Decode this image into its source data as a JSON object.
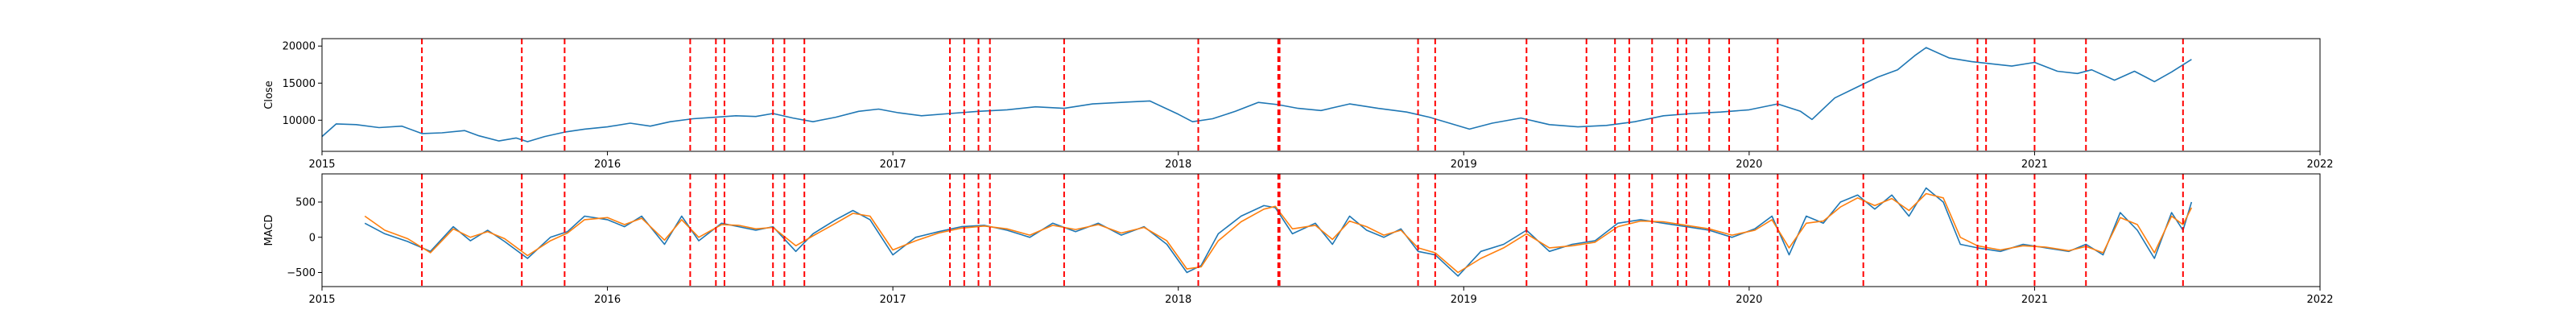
{
  "colors": {
    "close": "#1f77b4",
    "macd": "#1f77b4",
    "signal": "#ff7f0e",
    "events": "#ff0000",
    "axes": "#000000"
  },
  "chart_data": [
    {
      "type": "line",
      "ylabel": "Close",
      "xlim": [
        2015.0,
        2022.0
      ],
      "ylim": [
        5800,
        21000
      ],
      "x_ticks": [
        2015,
        2016,
        2017,
        2018,
        2019,
        2020,
        2021,
        2022
      ],
      "x_tick_labels": [
        "2015",
        "2016",
        "2017",
        "2018",
        "2019",
        "2020",
        "2021",
        "2022"
      ],
      "y_ticks": [
        10000,
        15000,
        20000
      ],
      "y_tick_labels": [
        "10000",
        "15000",
        "20000"
      ],
      "grid": false,
      "series": [
        {
          "x": [
            2015.0,
            2015.05,
            2015.12,
            2015.2,
            2015.28,
            2015.35,
            2015.42,
            2015.5,
            2015.55,
            2015.62,
            2015.68,
            2015.72,
            2015.78,
            2015.85,
            2015.92,
            2016.0,
            2016.08,
            2016.15,
            2016.22,
            2016.3,
            2016.38,
            2016.45,
            2016.52,
            2016.58,
            2016.65,
            2016.72,
            2016.8,
            2016.88,
            2016.95,
            2017.02,
            2017.1,
            2017.2,
            2017.3,
            2017.4,
            2017.5,
            2017.6,
            2017.7,
            2017.8,
            2017.9,
            2018.0,
            2018.05,
            2018.12,
            2018.2,
            2018.28,
            2018.35,
            2018.42,
            2018.5,
            2018.6,
            2018.7,
            2018.8,
            2018.88,
            2018.95,
            2019.02,
            2019.1,
            2019.2,
            2019.3,
            2019.4,
            2019.5,
            2019.6,
            2019.7,
            2019.8,
            2019.9,
            2020.0,
            2020.1,
            2020.18,
            2020.22,
            2020.3,
            2020.38,
            2020.45,
            2020.52,
            2020.58,
            2020.62,
            2020.7,
            2020.78,
            2020.85,
            2020.92,
            2021.0,
            2021.08,
            2021.15,
            2021.2,
            2021.28,
            2021.35,
            2021.42,
            2021.48,
            2021.55
          ],
          "values": [
            7800,
            9500,
            9400,
            9000,
            9200,
            8200,
            8300,
            8600,
            7900,
            7200,
            7600,
            7100,
            7800,
            8400,
            8800,
            9100,
            9600,
            9200,
            9800,
            10200,
            10400,
            10600,
            10500,
            10900,
            10300,
            9800,
            10400,
            11200,
            11500,
            11000,
            10600,
            10900,
            11200,
            11400,
            11800,
            11600,
            12200,
            12400,
            12600,
            10800,
            9800,
            10200,
            11200,
            12400,
            12100,
            11600,
            11300,
            12200,
            11600,
            11100,
            10400,
            9600,
            8800,
            9600,
            10300,
            9400,
            9100,
            9300,
            9800,
            10600,
            10900,
            11100,
            11400,
            12200,
            11200,
            10100,
            13000,
            14500,
            15800,
            16800,
            18700,
            19800,
            18400,
            17900,
            17600,
            17300,
            17800,
            16600,
            16300,
            16800,
            15400,
            16600,
            15200,
            16500,
            18200
          ]
        }
      ],
      "events_x": [
        2015.35,
        2015.7,
        2015.85,
        2016.29,
        2016.38,
        2016.41,
        2016.58,
        2016.62,
        2016.69,
        2017.2,
        2017.25,
        2017.3,
        2017.34,
        2017.6,
        2018.07,
        2018.35,
        2018.355,
        2018.84,
        2018.9,
        2019.22,
        2019.43,
        2019.53,
        2019.58,
        2019.66,
        2019.75,
        2019.78,
        2019.86,
        2019.93,
        2020.1,
        2020.4,
        2020.8,
        2020.83,
        2021.0,
        2021.18,
        2021.52
      ]
    },
    {
      "type": "line",
      "ylabel": "MACD",
      "xlim": [
        2015.0,
        2022.0
      ],
      "ylim": [
        -700,
        900
      ],
      "x_ticks": [
        2015,
        2016,
        2017,
        2018,
        2019,
        2020,
        2021,
        2022
      ],
      "x_tick_labels": [
        "2015",
        "2016",
        "2017",
        "2018",
        "2019",
        "2020",
        "2021",
        "2022"
      ],
      "y_ticks": [
        -500,
        0,
        500
      ],
      "y_tick_labels": [
        "−500",
        "0",
        "500"
      ],
      "grid": false,
      "series": [
        {
          "x": [
            2015.15,
            2015.22,
            2015.3,
            2015.38,
            2015.46,
            2015.52,
            2015.58,
            2015.64,
            2015.72,
            2015.8,
            2015.86,
            2015.92,
            2016.0,
            2016.06,
            2016.12,
            2016.2,
            2016.26,
            2016.32,
            2016.4,
            2016.46,
            2016.52,
            2016.58,
            2016.66,
            2016.72,
            2016.8,
            2016.86,
            2016.92,
            2017.0,
            2017.08,
            2017.16,
            2017.24,
            2017.32,
            2017.4,
            2017.48,
            2017.56,
            2017.64,
            2017.72,
            2017.8,
            2017.88,
            2017.96,
            2018.03,
            2018.08,
            2018.14,
            2018.22,
            2018.3,
            2018.34,
            2018.4,
            2018.48,
            2018.54,
            2018.6,
            2018.66,
            2018.72,
            2018.78,
            2018.84,
            2018.9,
            2018.98,
            2019.06,
            2019.14,
            2019.22,
            2019.3,
            2019.38,
            2019.46,
            2019.54,
            2019.62,
            2019.7,
            2019.78,
            2019.86,
            2019.94,
            2020.02,
            2020.08,
            2020.14,
            2020.2,
            2020.26,
            2020.32,
            2020.38,
            2020.44,
            2020.5,
            2020.56,
            2020.62,
            2020.68,
            2020.74,
            2020.8,
            2020.88,
            2020.96,
            2021.04,
            2021.12,
            2021.18,
            2021.24,
            2021.3,
            2021.36,
            2021.42,
            2021.48,
            2021.52,
            2021.55
          ],
          "values": [
            200,
            50,
            -60,
            -200,
            150,
            -50,
            100,
            -60,
            -300,
            0,
            80,
            300,
            250,
            150,
            300,
            -100,
            300,
            -50,
            200,
            150,
            100,
            150,
            -200,
            50,
            250,
            380,
            250,
            -250,
            0,
            80,
            150,
            170,
            100,
            0,
            200,
            80,
            200,
            30,
            150,
            -100,
            -500,
            -400,
            50,
            300,
            450,
            420,
            50,
            200,
            -100,
            300,
            100,
            0,
            120,
            -200,
            -250,
            -550,
            -200,
            -100,
            100,
            -200,
            -100,
            -50,
            200,
            250,
            200,
            150,
            100,
            0,
            120,
            300,
            -250,
            300,
            200,
            500,
            600,
            400,
            600,
            300,
            700,
            500,
            -100,
            -150,
            -200,
            -100,
            -150,
            -200,
            -100,
            -250,
            350,
            100,
            -300,
            350,
            100,
            500
          ]
        },
        {
          "x": [
            2015.15,
            2015.22,
            2015.3,
            2015.38,
            2015.46,
            2015.52,
            2015.58,
            2015.64,
            2015.72,
            2015.8,
            2015.86,
            2015.92,
            2016.0,
            2016.06,
            2016.12,
            2016.2,
            2016.26,
            2016.32,
            2016.4,
            2016.46,
            2016.52,
            2016.58,
            2016.66,
            2016.72,
            2016.8,
            2016.86,
            2016.92,
            2017.0,
            2017.08,
            2017.16,
            2017.24,
            2017.32,
            2017.4,
            2017.48,
            2017.56,
            2017.64,
            2017.72,
            2017.8,
            2017.88,
            2017.96,
            2018.03,
            2018.08,
            2018.14,
            2018.22,
            2018.3,
            2018.34,
            2018.4,
            2018.48,
            2018.54,
            2018.6,
            2018.66,
            2018.72,
            2018.78,
            2018.84,
            2018.9,
            2018.98,
            2019.06,
            2019.14,
            2019.22,
            2019.3,
            2019.38,
            2019.46,
            2019.54,
            2019.62,
            2019.7,
            2019.78,
            2019.86,
            2019.94,
            2020.02,
            2020.08,
            2020.14,
            2020.2,
            2020.26,
            2020.32,
            2020.38,
            2020.44,
            2020.5,
            2020.56,
            2020.62,
            2020.68,
            2020.74,
            2020.8,
            2020.88,
            2020.96,
            2021.04,
            2021.12,
            2021.18,
            2021.24,
            2021.3,
            2021.36,
            2021.42,
            2021.48,
            2021.52,
            2021.55
          ],
          "values": [
            300,
            100,
            -20,
            -220,
            120,
            0,
            80,
            -20,
            -260,
            -50,
            60,
            250,
            280,
            180,
            270,
            -40,
            250,
            0,
            180,
            170,
            120,
            140,
            -120,
            20,
            200,
            340,
            300,
            -180,
            -50,
            60,
            130,
            160,
            120,
            30,
            170,
            110,
            180,
            60,
            140,
            -50,
            -450,
            -420,
            -50,
            220,
            400,
            440,
            120,
            170,
            -30,
            230,
            150,
            30,
            100,
            -150,
            -220,
            -500,
            -300,
            -150,
            50,
            -150,
            -120,
            -70,
            150,
            230,
            220,
            170,
            120,
            30,
            100,
            250,
            -150,
            200,
            230,
            430,
            560,
            450,
            550,
            380,
            620,
            560,
            0,
            -120,
            -180,
            -120,
            -140,
            -190,
            -130,
            -220,
            280,
            180,
            -220,
            300,
            180,
            420
          ]
        }
      ],
      "events_x": [
        2015.35,
        2015.7,
        2015.85,
        2016.29,
        2016.38,
        2016.41,
        2016.58,
        2016.62,
        2016.69,
        2017.2,
        2017.25,
        2017.3,
        2017.34,
        2017.6,
        2018.07,
        2018.35,
        2018.355,
        2018.84,
        2018.9,
        2019.22,
        2019.43,
        2019.53,
        2019.58,
        2019.66,
        2019.75,
        2019.78,
        2019.86,
        2019.93,
        2020.1,
        2020.4,
        2020.8,
        2020.83,
        2021.0,
        2021.18,
        2021.52
      ]
    }
  ]
}
